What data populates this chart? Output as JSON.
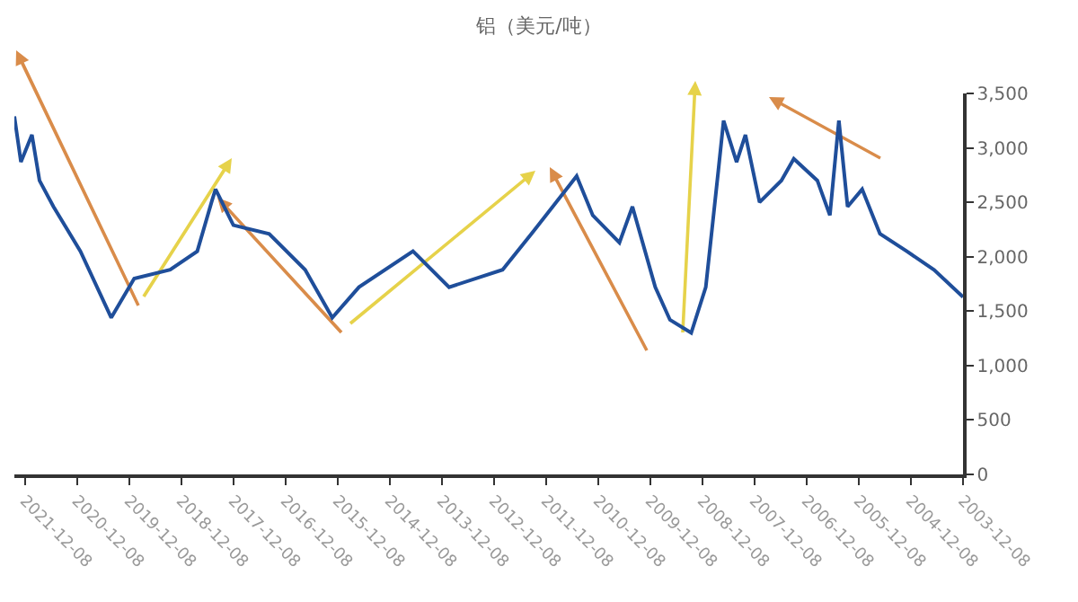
{
  "chart_data": {
    "type": "line",
    "title": "铝（美元/吨）",
    "x": [
      "2003-12-08",
      "2004-06-28",
      "2005-01-05",
      "2005-07-12",
      "2005-11-14",
      "2006-02-24",
      "2006-04-26",
      "2006-06-28",
      "2006-09-24",
      "2007-03-08",
      "2007-06-03",
      "2007-11-03",
      "2008-02-10",
      "2008-04-12",
      "2008-07-12",
      "2008-08-18",
      "2008-11-14",
      "2009-02-24",
      "2009-07-23",
      "2009-11-03",
      "2010-04-12",
      "2010-07-12",
      "2011-01-15",
      "2011-05-08",
      "2012-03-20",
      "2012-10-08",
      "2013-10-18",
      "2014-06-28",
      "2015-07-12",
      "2016-01-15",
      "2016-07-23",
      "2017-04-01",
      "2017-12-08",
      "2018-04-12",
      "2018-05-08",
      "2018-08-18",
      "2019-02-24",
      "2019-11-03",
      "2020-04-12",
      "2020-11-14",
      "2021-05-22",
      "2021-08-28",
      "2021-10-20",
      "2022-01-05",
      "2022-02-20"
    ],
    "series": [
      {
        "color": "#1f4e9a",
        "values": [
          1630,
          1880,
          2050,
          2210,
          2620,
          2460,
          3250,
          2380,
          2700,
          2900,
          2700,
          2500,
          3120,
          2870,
          3250,
          2790,
          1720,
          1300,
          1420,
          1720,
          2460,
          2130,
          2380,
          2740,
          2210,
          1880,
          1720,
          2050,
          1720,
          1440,
          1880,
          2210,
          2290,
          2620,
          2510,
          2050,
          1880,
          1800,
          1440,
          2050,
          2460,
          2700,
          3120,
          2870,
          3290
        ]
      }
    ],
    "xlim": [
      "2022-02-20",
      "2003-12-08"
    ],
    "xticks": [
      "2003-12-08",
      "2004-12-08",
      "2005-12-08",
      "2006-12-08",
      "2007-12-08",
      "2008-12-08",
      "2009-12-08",
      "2010-12-08",
      "2011-12-08",
      "2012-12-08",
      "2013-12-08",
      "2014-12-08",
      "2015-12-08",
      "2016-12-08",
      "2017-12-08",
      "2018-12-08",
      "2019-12-08",
      "2020-12-08",
      "2021-12-08"
    ],
    "ylim": [
      0,
      3500
    ],
    "yticks": [
      0,
      500,
      {
        "value": 1000,
        "label": "1,000"
      },
      {
        "value": 1500,
        "label": "1,500"
      },
      {
        "value": 2000,
        "label": "2,000"
      },
      {
        "value": 2500,
        "label": "2,500"
      },
      {
        "value": 3000,
        "label": "3,000"
      },
      {
        "value": 3500,
        "label": "3,500"
      }
    ]
  }
}
